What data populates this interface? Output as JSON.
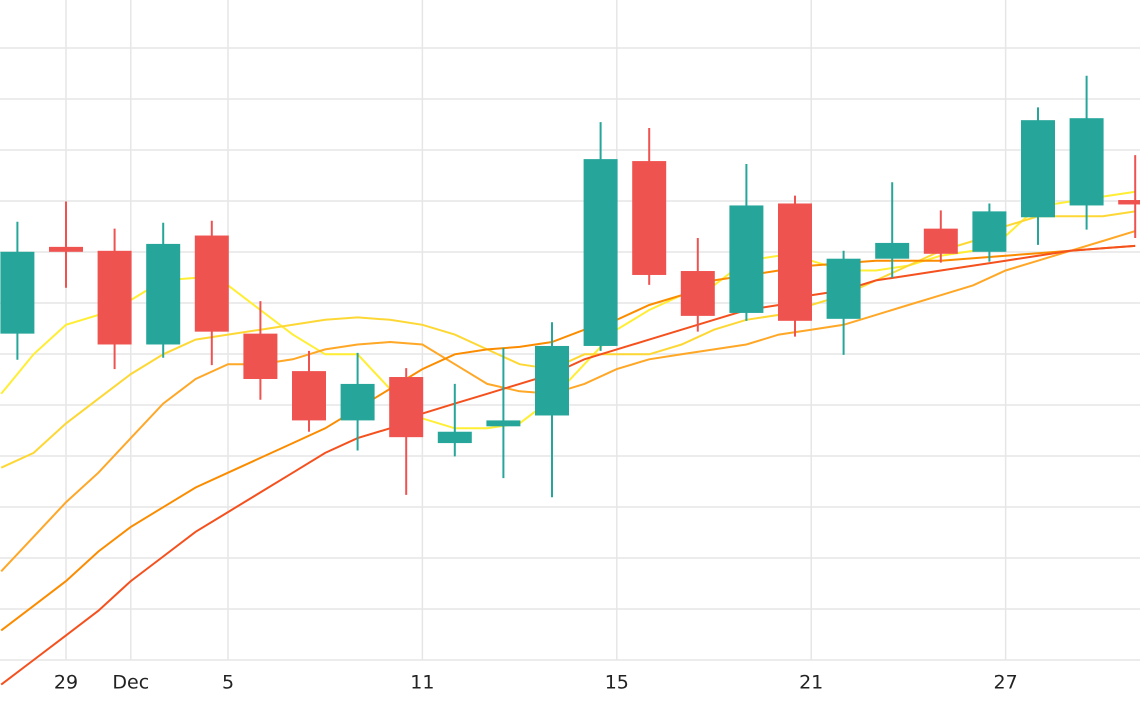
{
  "chart_data": {
    "type": "candlestick",
    "title": "",
    "xlabel": "",
    "ylabel": "",
    "x_ticks": [
      {
        "day": 29,
        "label": "29"
      },
      {
        "day": 31,
        "label": "Dec"
      },
      {
        "day": 34,
        "label": "5"
      },
      {
        "day": 40,
        "label": "11"
      },
      {
        "day": 46,
        "label": "15"
      },
      {
        "day": 52,
        "label": "21"
      },
      {
        "day": 58,
        "label": "27"
      }
    ],
    "grid": {
      "horizontal": true,
      "vertical": true
    },
    "x_range": [
      27,
      62.2
    ],
    "y_range": [
      0,
      100
    ],
    "candles": [
      {
        "day": 27.5,
        "open": 66.2,
        "close": 82.8,
        "high": 88.9,
        "low": 60.9
      },
      {
        "day": 29,
        "open": 83.8,
        "close": 82.8,
        "high": 93.0,
        "low": 75.5
      },
      {
        "day": 30.5,
        "open": 83.0,
        "close": 64.0,
        "high": 87.5,
        "low": 59.0
      },
      {
        "day": 32,
        "open": 64.0,
        "close": 84.4,
        "high": 88.7,
        "low": 61.3
      },
      {
        "day": 33.5,
        "open": 86.1,
        "close": 66.6,
        "high": 89.1,
        "low": 59.8
      },
      {
        "day": 35,
        "open": 66.2,
        "close": 57.0,
        "high": 72.8,
        "low": 52.8
      },
      {
        "day": 36.5,
        "open": 58.6,
        "close": 48.6,
        "high": 62.7,
        "low": 46.3
      },
      {
        "day": 38,
        "open": 48.6,
        "close": 56.0,
        "high": 62.3,
        "low": 42.5
      },
      {
        "day": 39.5,
        "open": 57.4,
        "close": 45.2,
        "high": 59.2,
        "low": 33.5
      },
      {
        "day": 41,
        "open": 44.0,
        "close": 46.3,
        "high": 56.0,
        "low": 41.3
      },
      {
        "day": 42.5,
        "open": 47.4,
        "close": 48.6,
        "high": 63.3,
        "low": 36.9
      },
      {
        "day": 44,
        "open": 49.6,
        "close": 63.7,
        "high": 68.5,
        "low": 33.0
      },
      {
        "day": 45.5,
        "open": 63.7,
        "close": 101.6,
        "high": 109.1,
        "low": 62.7
      },
      {
        "day": 47,
        "open": 101.2,
        "close": 78.1,
        "high": 107.9,
        "low": 76.1
      },
      {
        "day": 48.5,
        "open": 78.9,
        "close": 69.8,
        "high": 85.6,
        "low": 66.6
      },
      {
        "day": 50,
        "open": 70.4,
        "close": 92.2,
        "high": 100.6,
        "low": 68.8
      },
      {
        "day": 51.5,
        "open": 92.6,
        "close": 68.8,
        "high": 94.2,
        "low": 65.6
      },
      {
        "day": 53,
        "open": 69.2,
        "close": 81.4,
        "high": 83.0,
        "low": 61.9
      },
      {
        "day": 54.5,
        "open": 81.4,
        "close": 84.6,
        "high": 96.9,
        "low": 77.5
      },
      {
        "day": 56,
        "open": 87.5,
        "close": 82.4,
        "high": 91.2,
        "low": 80.6
      },
      {
        "day": 57.5,
        "open": 82.8,
        "close": 91.0,
        "high": 92.6,
        "low": 80.8
      },
      {
        "day": 59,
        "open": 89.8,
        "close": 109.5,
        "high": 112.1,
        "low": 84.2
      },
      {
        "day": 60.5,
        "open": 92.2,
        "close": 109.9,
        "high": 118.5,
        "low": 87.3
      },
      {
        "day": 62,
        "open": 93.3,
        "close": 92.4,
        "high": 102.4,
        "low": 85.6
      }
    ],
    "moving_averages": [
      {
        "color": "#ffee33",
        "points": [
          [
            27,
            54
          ],
          [
            28,
            62
          ],
          [
            29,
            68
          ],
          [
            30,
            70
          ],
          [
            31,
            73
          ],
          [
            32,
            77
          ],
          [
            33,
            77.5
          ],
          [
            34,
            76
          ],
          [
            35,
            71
          ],
          [
            36,
            66
          ],
          [
            37,
            62
          ],
          [
            38,
            62
          ],
          [
            39,
            55
          ],
          [
            40,
            49
          ],
          [
            41,
            47
          ],
          [
            42,
            47
          ],
          [
            43,
            48
          ],
          [
            44,
            53
          ],
          [
            45,
            60
          ],
          [
            46,
            67
          ],
          [
            47,
            71
          ],
          [
            48,
            74
          ],
          [
            49,
            76
          ],
          [
            50,
            81
          ],
          [
            51,
            82
          ],
          [
            52,
            81
          ],
          [
            53,
            79
          ],
          [
            54,
            79
          ],
          [
            55,
            80
          ],
          [
            56,
            82
          ],
          [
            57,
            83
          ],
          [
            58,
            86
          ],
          [
            59,
            92
          ],
          [
            60,
            93
          ],
          [
            61,
            94
          ],
          [
            62,
            95
          ]
        ]
      },
      {
        "color": "#fdd835",
        "points": [
          [
            27,
            39
          ],
          [
            28,
            42
          ],
          [
            29,
            48
          ],
          [
            30,
            53
          ],
          [
            31,
            58
          ],
          [
            32,
            62
          ],
          [
            33,
            65
          ],
          [
            34,
            66
          ],
          [
            35,
            67
          ],
          [
            36,
            68
          ],
          [
            37,
            69
          ],
          [
            38,
            69.5
          ],
          [
            39,
            69
          ],
          [
            40,
            68
          ],
          [
            41,
            66
          ],
          [
            42,
            63
          ],
          [
            43,
            60
          ],
          [
            44,
            59
          ],
          [
            45,
            62
          ],
          [
            46,
            62
          ],
          [
            47,
            62
          ],
          [
            48,
            64
          ],
          [
            49,
            67
          ],
          [
            50,
            69
          ],
          [
            51,
            70
          ],
          [
            52,
            72
          ],
          [
            53,
            74
          ],
          [
            54,
            77
          ],
          [
            55,
            80
          ],
          [
            56,
            83
          ],
          [
            57,
            85
          ],
          [
            58,
            88
          ],
          [
            59,
            90
          ],
          [
            60,
            90
          ],
          [
            61,
            90
          ],
          [
            62,
            91
          ]
        ]
      },
      {
        "color": "#ffa726",
        "points": [
          [
            27,
            18
          ],
          [
            28,
            25
          ],
          [
            29,
            32
          ],
          [
            30,
            38
          ],
          [
            31,
            45
          ],
          [
            32,
            52
          ],
          [
            33,
            57
          ],
          [
            34,
            60
          ],
          [
            35,
            60
          ],
          [
            36,
            61
          ],
          [
            37,
            63
          ],
          [
            38,
            64
          ],
          [
            39,
            64.5
          ],
          [
            40,
            64
          ],
          [
            41,
            60
          ],
          [
            42,
            56
          ],
          [
            43,
            54.5
          ],
          [
            44,
            54
          ],
          [
            45,
            56
          ],
          [
            46,
            59
          ],
          [
            47,
            61
          ],
          [
            48,
            62
          ],
          [
            49,
            63
          ],
          [
            50,
            64
          ],
          [
            51,
            66
          ],
          [
            52,
            67
          ],
          [
            53,
            68
          ],
          [
            54,
            70
          ],
          [
            55,
            72
          ],
          [
            56,
            74
          ],
          [
            57,
            76
          ],
          [
            58,
            79
          ],
          [
            59,
            81
          ],
          [
            60,
            83
          ],
          [
            61,
            85
          ],
          [
            62,
            87
          ]
        ]
      },
      {
        "color": "#fb8c00",
        "points": [
          [
            27,
            6
          ],
          [
            28,
            11
          ],
          [
            29,
            16
          ],
          [
            30,
            22
          ],
          [
            31,
            27
          ],
          [
            32,
            31
          ],
          [
            33,
            35
          ],
          [
            34,
            38
          ],
          [
            35,
            41
          ],
          [
            36,
            44
          ],
          [
            37,
            47
          ],
          [
            38,
            51
          ],
          [
            39,
            55
          ],
          [
            40,
            59
          ],
          [
            41,
            62
          ],
          [
            42,
            63
          ],
          [
            43,
            63.5
          ],
          [
            44,
            64.5
          ],
          [
            45,
            67
          ],
          [
            46,
            69
          ],
          [
            47,
            72
          ],
          [
            48,
            74
          ],
          [
            49,
            77
          ],
          [
            50,
            78
          ],
          [
            51,
            79
          ],
          [
            52,
            80
          ],
          [
            53,
            80.5
          ],
          [
            54,
            81
          ],
          [
            55,
            81
          ],
          [
            56,
            81
          ],
          [
            57,
            81.5
          ],
          [
            58,
            82
          ],
          [
            59,
            82.5
          ],
          [
            60,
            83
          ],
          [
            61,
            83.5
          ],
          [
            62,
            84
          ]
        ]
      },
      {
        "color": "#f4511e",
        "points": [
          [
            27,
            -5
          ],
          [
            28,
            0
          ],
          [
            29,
            5
          ],
          [
            30,
            10
          ],
          [
            31,
            16
          ],
          [
            32,
            21
          ],
          [
            33,
            26
          ],
          [
            34,
            30
          ],
          [
            35,
            34
          ],
          [
            36,
            38
          ],
          [
            37,
            42
          ],
          [
            38,
            45
          ],
          [
            39,
            47
          ],
          [
            40,
            50
          ],
          [
            41,
            52
          ],
          [
            42,
            54
          ],
          [
            43,
            56
          ],
          [
            44,
            58
          ],
          [
            45,
            61
          ],
          [
            46,
            63
          ],
          [
            47,
            65
          ],
          [
            48,
            67
          ],
          [
            49,
            69
          ],
          [
            50,
            71
          ],
          [
            51,
            72
          ],
          [
            52,
            74
          ],
          [
            53,
            75
          ],
          [
            54,
            77
          ],
          [
            55,
            78
          ],
          [
            56,
            79
          ],
          [
            57,
            80
          ],
          [
            58,
            81
          ],
          [
            59,
            82
          ],
          [
            60,
            83
          ],
          [
            61,
            83.5
          ],
          [
            62,
            84
          ]
        ]
      }
    ],
    "colors": {
      "up": "#26a69a",
      "down": "#ef5350",
      "grid": "#e6e6e6",
      "axis_text": "#222222",
      "background": "#ffffff"
    }
  }
}
